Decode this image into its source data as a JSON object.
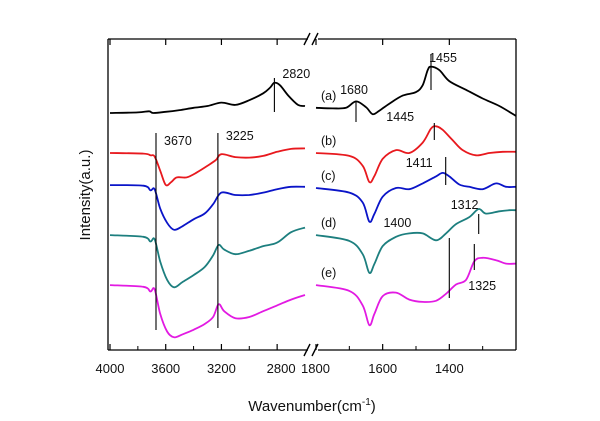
{
  "chart_data": {
    "type": "line",
    "xlabel": "Wavenumber(cm",
    "xlabel_sup": "-1",
    "xlabel_tail": ")",
    "ylabel": "Intensity(a.u.)",
    "x_axis_break": true,
    "x_reversed": true,
    "xlim_left_panel": [
      4000,
      2600
    ],
    "xlim_right_panel": [
      1800,
      1200
    ],
    "x_ticks_left": [
      4000,
      3600,
      3200,
      2800
    ],
    "x_ticks_right": [
      1800,
      1600,
      1400
    ],
    "x_tick_labels": [
      "4000",
      "3600",
      "3200",
      "2800",
      "1800",
      "1600",
      "1400"
    ],
    "grid": false,
    "y_ticks_labels": false,
    "series": [
      {
        "name": "(a)",
        "color": "#000000",
        "left": [
          [
            4000,
            0.0
          ],
          [
            3800,
            0.01
          ],
          [
            3720,
            0.03
          ],
          [
            3690,
            0.0
          ],
          [
            3600,
            0.02
          ],
          [
            3500,
            0.05
          ],
          [
            3400,
            0.09
          ],
          [
            3300,
            0.12
          ],
          [
            3200,
            0.18
          ],
          [
            3100,
            0.14
          ],
          [
            3000,
            0.22
          ],
          [
            2900,
            0.34
          ],
          [
            2850,
            0.44
          ],
          [
            2820,
            0.52
          ],
          [
            2780,
            0.48
          ],
          [
            2720,
            0.3
          ],
          [
            2650,
            0.14
          ],
          [
            2600,
            0.12
          ]
        ],
        "right": [
          [
            1800,
            0.09
          ],
          [
            1750,
            0.08
          ],
          [
            1710,
            0.09
          ],
          [
            1680,
            0.2
          ],
          [
            1650,
            0.1
          ],
          [
            1630,
            -0.02
          ],
          [
            1610,
            0.04
          ],
          [
            1580,
            0.16
          ],
          [
            1540,
            0.3
          ],
          [
            1500,
            0.36
          ],
          [
            1480,
            0.48
          ],
          [
            1465,
            0.74
          ],
          [
            1455,
            0.8
          ],
          [
            1430,
            0.74
          ],
          [
            1400,
            0.55
          ],
          [
            1350,
            0.4
          ],
          [
            1300,
            0.25
          ],
          [
            1250,
            0.12
          ],
          [
            1200,
            -0.05
          ]
        ]
      },
      {
        "name": "(b)",
        "color": "#e8191e",
        "left": [
          [
            4000,
            0.0
          ],
          [
            3760,
            -0.01
          ],
          [
            3710,
            -0.04
          ],
          [
            3680,
            -0.06
          ],
          [
            3640,
            -0.3
          ],
          [
            3600,
            -0.55
          ],
          [
            3560,
            -0.5
          ],
          [
            3520,
            -0.42
          ],
          [
            3450,
            -0.42
          ],
          [
            3380,
            -0.34
          ],
          [
            3300,
            -0.22
          ],
          [
            3240,
            -0.12
          ],
          [
            3200,
            -0.02
          ],
          [
            3100,
            -0.07
          ],
          [
            3000,
            -0.08
          ],
          [
            2900,
            -0.05
          ],
          [
            2800,
            0.02
          ],
          [
            2700,
            0.07
          ],
          [
            2600,
            0.08
          ]
        ],
        "right": [
          [
            1800,
            0.0
          ],
          [
            1700,
            -0.05
          ],
          [
            1660,
            -0.22
          ],
          [
            1640,
            -0.5
          ],
          [
            1625,
            -0.4
          ],
          [
            1600,
            -0.1
          ],
          [
            1560,
            0.05
          ],
          [
            1520,
            0.0
          ],
          [
            1480,
            0.18
          ],
          [
            1455,
            0.42
          ],
          [
            1440,
            0.46
          ],
          [
            1420,
            0.4
          ],
          [
            1390,
            0.22
          ],
          [
            1360,
            0.05
          ],
          [
            1320,
            -0.04
          ],
          [
            1280,
            0.0
          ],
          [
            1240,
            0.02
          ],
          [
            1200,
            0.02
          ]
        ]
      },
      {
        "name": "(c)",
        "color": "#0a14c8",
        "left": [
          [
            4000,
            0.05
          ],
          [
            3760,
            0.04
          ],
          [
            3710,
            -0.04
          ],
          [
            3680,
            -0.02
          ],
          [
            3640,
            -0.35
          ],
          [
            3590,
            -0.6
          ],
          [
            3540,
            -0.72
          ],
          [
            3480,
            -0.66
          ],
          [
            3400,
            -0.54
          ],
          [
            3320,
            -0.44
          ],
          [
            3260,
            -0.28
          ],
          [
            3200,
            -0.08
          ],
          [
            3100,
            -0.12
          ],
          [
            3000,
            -0.12
          ],
          [
            2900,
            -0.08
          ],
          [
            2800,
            -0.02
          ],
          [
            2700,
            0.02
          ],
          [
            2600,
            0.02
          ]
        ],
        "right": [
          [
            1800,
            0.0
          ],
          [
            1700,
            -0.08
          ],
          [
            1660,
            -0.25
          ],
          [
            1640,
            -0.58
          ],
          [
            1625,
            -0.45
          ],
          [
            1600,
            -0.15
          ],
          [
            1560,
            0.0
          ],
          [
            1520,
            -0.02
          ],
          [
            1480,
            0.08
          ],
          [
            1440,
            0.2
          ],
          [
            1420,
            0.26
          ],
          [
            1400,
            0.2
          ],
          [
            1370,
            0.06
          ],
          [
            1340,
            0.02
          ],
          [
            1300,
            -0.02
          ],
          [
            1260,
            0.08
          ],
          [
            1230,
            0.02
          ],
          [
            1200,
            0.02
          ]
        ]
      },
      {
        "name": "(d)",
        "color": "#1d7f7f",
        "left": [
          [
            4000,
            0.05
          ],
          [
            3760,
            0.02
          ],
          [
            3710,
            -0.06
          ],
          [
            3680,
            -0.02
          ],
          [
            3640,
            -0.4
          ],
          [
            3590,
            -0.72
          ],
          [
            3540,
            -0.85
          ],
          [
            3480,
            -0.76
          ],
          [
            3400,
            -0.64
          ],
          [
            3320,
            -0.5
          ],
          [
            3260,
            -0.3
          ],
          [
            3220,
            -0.12
          ],
          [
            3180,
            -0.2
          ],
          [
            3100,
            -0.28
          ],
          [
            3000,
            -0.22
          ],
          [
            2900,
            -0.14
          ],
          [
            2800,
            -0.08
          ],
          [
            2700,
            0.1
          ],
          [
            2600,
            0.18
          ]
        ],
        "right": [
          [
            1800,
            0.05
          ],
          [
            1700,
            -0.05
          ],
          [
            1660,
            -0.28
          ],
          [
            1640,
            -0.6
          ],
          [
            1625,
            -0.45
          ],
          [
            1600,
            -0.14
          ],
          [
            1560,
            0.02
          ],
          [
            1520,
            0.08
          ],
          [
            1480,
            0.08
          ],
          [
            1440,
            -0.04
          ],
          [
            1410,
            0.08
          ],
          [
            1380,
            0.24
          ],
          [
            1340,
            0.36
          ],
          [
            1312,
            0.5
          ],
          [
            1290,
            0.42
          ],
          [
            1250,
            0.46
          ],
          [
            1220,
            0.48
          ],
          [
            1200,
            0.48
          ]
        ]
      },
      {
        "name": "(e)",
        "color": "#e21ae2",
        "left": [
          [
            4000,
            0.05
          ],
          [
            3760,
            0.02
          ],
          [
            3710,
            -0.06
          ],
          [
            3680,
            -0.02
          ],
          [
            3640,
            -0.44
          ],
          [
            3590,
            -0.75
          ],
          [
            3540,
            -0.85
          ],
          [
            3480,
            -0.8
          ],
          [
            3400,
            -0.72
          ],
          [
            3320,
            -0.62
          ],
          [
            3260,
            -0.5
          ],
          [
            3220,
            -0.28
          ],
          [
            3180,
            -0.4
          ],
          [
            3100,
            -0.52
          ],
          [
            3000,
            -0.5
          ],
          [
            2900,
            -0.4
          ],
          [
            2800,
            -0.3
          ],
          [
            2700,
            -0.2
          ],
          [
            2600,
            -0.12
          ]
        ],
        "right": [
          [
            1800,
            0.05
          ],
          [
            1700,
            -0.05
          ],
          [
            1660,
            -0.3
          ],
          [
            1640,
            -0.64
          ],
          [
            1625,
            -0.45
          ],
          [
            1600,
            -0.14
          ],
          [
            1560,
            -0.08
          ],
          [
            1520,
            -0.2
          ],
          [
            1480,
            -0.24
          ],
          [
            1440,
            -0.22
          ],
          [
            1410,
            -0.1
          ],
          [
            1380,
            0.06
          ],
          [
            1350,
            0.14
          ],
          [
            1325,
            0.46
          ],
          [
            1300,
            0.52
          ],
          [
            1260,
            0.48
          ],
          [
            1230,
            0.42
          ],
          [
            1200,
            0.42
          ]
        ]
      }
    ],
    "annotations": [
      {
        "text": "2820",
        "x": 2820,
        "series": "(a)"
      },
      {
        "text": "1680",
        "x": 1680,
        "series": "(a)"
      },
      {
        "text": "1455",
        "x": 1455,
        "series": "(a)"
      },
      {
        "text": "1445",
        "x": 1445,
        "series": "(b)"
      },
      {
        "text": "3670",
        "x": 3670,
        "series": "(b)"
      },
      {
        "text": "3225",
        "x": 3225,
        "series": "(b)"
      },
      {
        "text": "1411",
        "x": 1411,
        "series": "(c)"
      },
      {
        "text": "1400",
        "x": 1400,
        "series": "(d)"
      },
      {
        "text": "1312",
        "x": 1312,
        "series": "(d)"
      },
      {
        "text": "1325",
        "x": 1325,
        "series": "(e)"
      }
    ]
  }
}
